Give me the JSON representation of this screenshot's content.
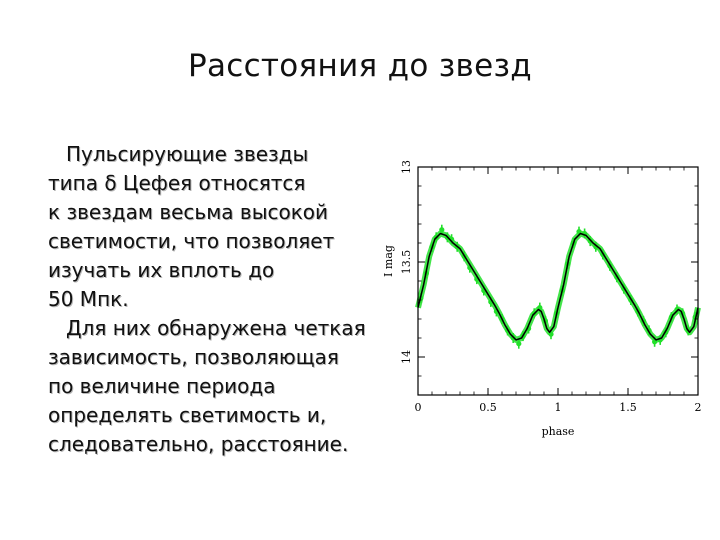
{
  "slide": {
    "title": "Расстояния до звезд",
    "paragraphs": [
      [
        "Пульсирующие звезды",
        "типа δ Цефея относятся",
        "к звездам весьма высокой",
        "светимости, что позволяет",
        "изучать их вплоть до",
        "50 Мпк."
      ],
      [
        "Для них обнаружена четкая",
        "зависимость, позволяющая",
        "по величине периода",
        "определять светимость и,",
        "следовательно, расстояние."
      ]
    ]
  },
  "chart_data": {
    "type": "line",
    "xlabel": "phase",
    "ylabel": "I mag",
    "xlim": [
      0,
      2
    ],
    "ylim": [
      14.2,
      13.0
    ],
    "y_inverted": true,
    "xticks": [
      "0",
      "0.5",
      "1",
      "1.5",
      "2"
    ],
    "yticks": [
      "13",
      "13.5",
      "14"
    ],
    "colors": {
      "model": "#000000",
      "observations": "#22e02a",
      "frame": "#000000"
    },
    "series": [
      {
        "role": "model-curve",
        "x": [
          0,
          0.04,
          0.08,
          0.12,
          0.16,
          0.2,
          0.25,
          0.3,
          0.35,
          0.4,
          0.45,
          0.5,
          0.55,
          0.58,
          0.62,
          0.66,
          0.7,
          0.74,
          0.78,
          0.82,
          0.86,
          0.88,
          0.9,
          0.92,
          0.94,
          0.97,
          1.0,
          1.04,
          1.08,
          1.12,
          1.16,
          1.2,
          1.25,
          1.3,
          1.35,
          1.4,
          1.45,
          1.5,
          1.55,
          1.58,
          1.62,
          1.66,
          1.7,
          1.74,
          1.78,
          1.82,
          1.86,
          1.88,
          1.9,
          1.92,
          1.94,
          1.97,
          2.0
        ],
        "y": [
          13.74,
          13.62,
          13.47,
          13.38,
          13.35,
          13.36,
          13.4,
          13.43,
          13.49,
          13.55,
          13.61,
          13.67,
          13.73,
          13.77,
          13.83,
          13.88,
          13.91,
          13.9,
          13.85,
          13.78,
          13.75,
          13.76,
          13.8,
          13.85,
          13.87,
          13.84,
          13.74,
          13.62,
          13.47,
          13.38,
          13.35,
          13.36,
          13.4,
          13.43,
          13.49,
          13.55,
          13.61,
          13.67,
          13.73,
          13.77,
          13.83,
          13.88,
          13.91,
          13.9,
          13.85,
          13.78,
          13.75,
          13.76,
          13.8,
          13.85,
          13.87,
          13.84,
          13.74
        ]
      },
      {
        "role": "observations",
        "x": [
          0.02,
          0.06,
          0.1,
          0.13,
          0.17,
          0.21,
          0.24,
          0.28,
          0.33,
          0.37,
          0.42,
          0.47,
          0.52,
          0.56,
          0.6,
          0.64,
          0.68,
          0.72,
          0.75,
          0.79,
          0.83,
          0.87,
          0.91,
          0.95,
          0.99,
          1.03,
          1.07,
          1.11,
          1.15,
          1.19,
          1.23,
          1.27,
          1.32,
          1.37,
          1.42,
          1.47,
          1.52,
          1.57,
          1.61,
          1.65,
          1.69,
          1.73,
          1.77,
          1.81,
          1.85,
          1.89,
          1.93,
          1.98
        ],
        "y": [
          13.69,
          13.56,
          13.42,
          13.37,
          13.33,
          13.37,
          13.38,
          13.42,
          13.47,
          13.53,
          13.59,
          13.65,
          13.71,
          13.76,
          13.8,
          13.86,
          13.9,
          13.93,
          13.89,
          13.85,
          13.77,
          13.74,
          13.81,
          13.88,
          13.77,
          13.65,
          13.51,
          13.4,
          13.34,
          13.35,
          13.39,
          13.42,
          13.46,
          13.52,
          13.58,
          13.64,
          13.7,
          13.76,
          13.81,
          13.86,
          13.92,
          13.91,
          13.87,
          13.79,
          13.75,
          13.77,
          13.86,
          13.79
        ]
      }
    ]
  }
}
